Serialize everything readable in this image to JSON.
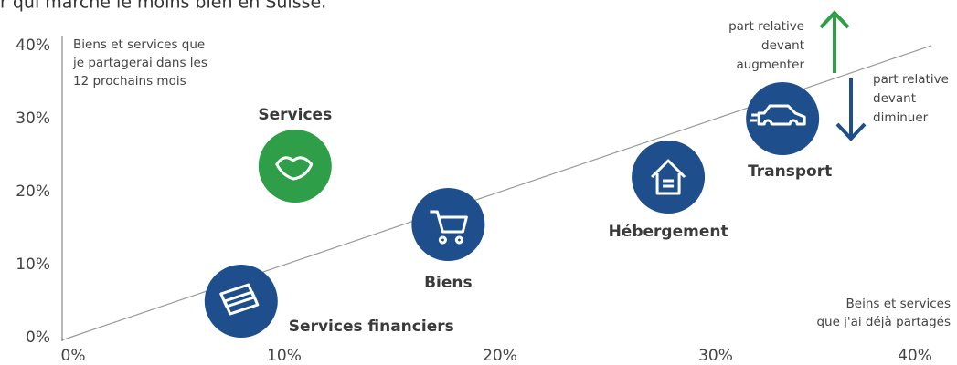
{
  "chart_data": {
    "type": "scatter",
    "title": "r qui marche le moins bien en Suisse.",
    "ylabel": [
      "Biens et services que",
      "je partagerai dans les",
      "12 prochains mois"
    ],
    "xlabel": [
      "Beins et services",
      "que j'ai déjà partagés"
    ],
    "annotations": [
      [
        "part relative",
        "devant",
        "augmenter"
      ],
      [
        "part relative",
        "devant",
        "diminuer"
      ]
    ],
    "xlim": [
      0,
      40
    ],
    "ylim": [
      0,
      40
    ],
    "xticks": [
      {
        "value": 0,
        "label": "0%"
      },
      {
        "value": 10,
        "label": "10%"
      },
      {
        "value": 20,
        "label": "20%"
      },
      {
        "value": 30,
        "label": "30%"
      },
      {
        "value": 40,
        "label": "40%"
      }
    ],
    "yticks": [
      {
        "value": 0,
        "label": "0%"
      },
      {
        "value": 10,
        "label": "10%"
      },
      {
        "value": 20,
        "label": "20%"
      },
      {
        "value": 30,
        "label": "30%"
      },
      {
        "value": 40,
        "label": "40%"
      }
    ],
    "points": [
      {
        "name": "Services financiers",
        "x": 8,
        "y": 5,
        "color": "#1f4e8c"
      },
      {
        "name": "Services",
        "x": 10.5,
        "y": 23.5,
        "color": "#2e9e48"
      },
      {
        "name": "Biens",
        "x": 17.6,
        "y": 15.5,
        "color": "#1f4e8c"
      },
      {
        "name": "Hébergement",
        "x": 27.8,
        "y": 22,
        "color": "#1f4e8c"
      },
      {
        "name": "Transport",
        "x": 33.1,
        "y": 30,
        "color": "#1f4e8c"
      }
    ]
  }
}
